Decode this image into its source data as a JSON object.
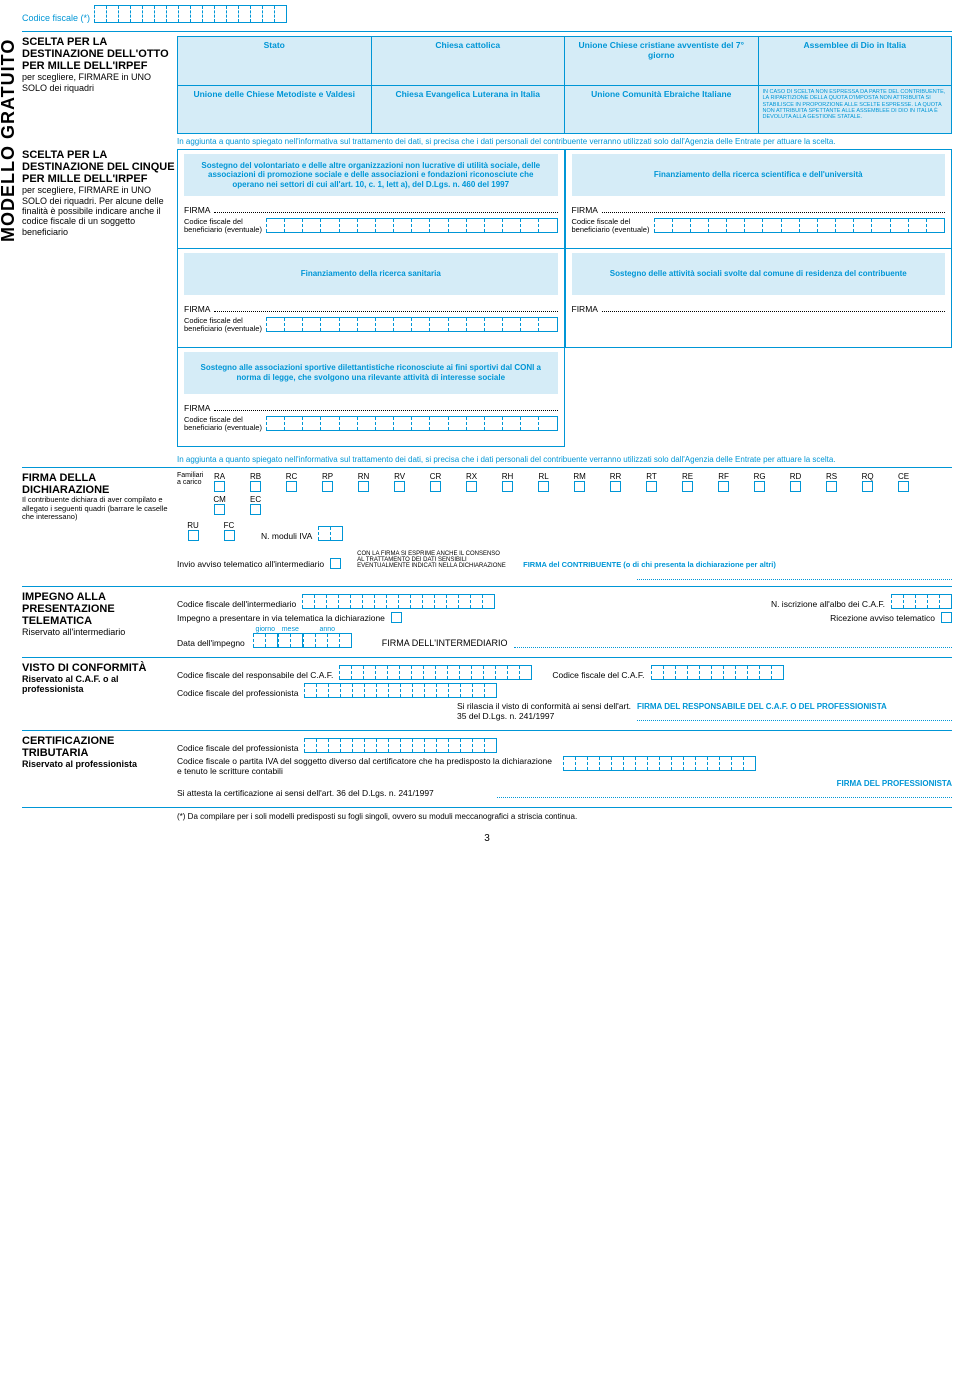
{
  "codice_fiscale_label": "Codice fiscale (*)",
  "vertical_sidebar": "MODELLO GRATUITO",
  "otto_mille": {
    "title": "SCELTA PER LA DESTINAZIONE DELL'OTTO PER MILLE DELL'IRPEF",
    "subtitle": "per scegliere, FIRMARE in UNO SOLO dei riquadri",
    "row1": [
      "Stato",
      "Chiesa cattolica",
      "Unione Chiese cristiane avventiste del 7° giorno",
      "Assemblee di Dio in Italia"
    ],
    "row2": [
      "Unione delle Chiese Metodiste e Valdesi",
      "Chiesa Evangelica Luterana in Italia",
      "Unione Comunità Ebraiche Italiane"
    ],
    "legal": "IN CASO DI SCELTA NON ESPRESSA DA PARTE DEL CONTRIBUENTE, LA RIPARTIZIONE DELLA QUOTA D'IMPOSTA NON ATTRIBUITA SI STABILISCE IN PROPORZIONE ALLE SCELTE ESPRESSE. LA QUOTA NON ATTRIBUITA SPETTANTE ALLE ASSEMBLEE DI DIO IN ITALIA È DEVOLUTA ALLA GESTIONE STATALE."
  },
  "privacy_note": "In aggiunta a quanto spiegato nell'informativa sul trattamento dei dati, si precisa che i dati personali del contribuente verranno utilizzati solo dall'Agenzia delle Entrate per attuare la scelta.",
  "cinque_mille": {
    "title": "SCELTA PER LA DESTINAZIONE DEL CINQUE PER MILLE DELL'IRPEF",
    "subtitle": "per scegliere, FIRMARE in UNO SOLO dei riquadri. Per alcune delle finalità è possibile indicare anche il codice fiscale di un soggetto beneficiario",
    "boxes": [
      "Sostegno del volontariato e delle altre organizzazioni non lucrative di utilità sociale, delle associazioni di promozione sociale e delle associazioni e fondazioni riconosciute che operano nei settori di cui all'art. 10, c. 1, lett a), del D.Lgs. n. 460 del 1997",
      "Finanziamento della ricerca scientifica e dell'università",
      "Finanziamento della ricerca sanitaria",
      "Sostegno delle attività sociali svolte dal comune di residenza del contribuente",
      "Sostegno alle associazioni sportive dilettantistiche riconosciute ai fini sportivi dal CONI a norma di legge, che svolgono una rilevante attività di interesse sociale"
    ],
    "firma_label": "FIRMA",
    "cf_benef_label": "Codice fiscale del\nbeneficiario (eventuale)"
  },
  "firma_dich": {
    "title": "FIRMA DELLA DICHIARAZIONE",
    "sub": "Il contribuente dichiara di aver compilato e allegato i seguenti quadri (barrare le caselle che interessano)",
    "familiari": "Familiari a carico",
    "codes": [
      "RA",
      "RB",
      "RC",
      "RP",
      "RN",
      "RV",
      "CR",
      "RX",
      "RH",
      "RL",
      "RM",
      "RR",
      "RT",
      "RE",
      "RF",
      "RG",
      "RD",
      "RS",
      "RQ",
      "CE",
      "CM",
      "EC"
    ],
    "codes2": [
      "RU",
      "FC"
    ],
    "moduli_iva": "N. moduli IVA",
    "invio": "Invio avviso telematico all'intermediario",
    "consenso": "CON LA FIRMA SI ESPRIME ANCHE IL CONSENSO AL TRATTAMENTO DEI DATI SENSIBILI EVENTUALMENTE INDICATI NELLA DICHIARAZIONE",
    "firma_contrib": "FIRMA del CONTRIBUENTE (o di chi presenta la dichiarazione per altri)"
  },
  "impegno": {
    "title": "IMPEGNO ALLA PRESENTAZIONE TELEMATICA",
    "sub": "Riservato all'intermediario",
    "cf_interm": "Codice fiscale dell'intermediario",
    "albo": "N. iscrizione all'albo dei C.A.F.",
    "impegno_pres": "Impegno a presentare in via telematica la dichiarazione",
    "ricezione": "Ricezione avviso telematico",
    "data": "Data dell'impegno",
    "giorno": "giorno",
    "mese": "mese",
    "anno": "anno",
    "firma_interm": "FIRMA DELL'INTERMEDIARIO"
  },
  "visto": {
    "title": "VISTO DI CONFORMITÀ",
    "sub": "Riservato al C.A.F. o al professionista",
    "cf_resp": "Codice fiscale del responsabile del C.A.F.",
    "cf_caf": "Codice fiscale del C.A.F.",
    "cf_prof": "Codice fiscale del professionista",
    "rilascia": "Si rilascia il visto di conformità ai sensi dell'art. 35 del D.Lgs. n. 241/1997",
    "firma": "FIRMA DEL RESPONSABILE DEL C.A.F. O DEL PROFESSIONISTA"
  },
  "cert": {
    "title": "CERTIFICAZIONE TRIBUTARIA",
    "sub": "Riservato al professionista",
    "cf_prof": "Codice fiscale del professionista",
    "cf_sogg": "Codice fiscale o partita IVA del soggetto diverso dal certificatore che ha predisposto la dichiarazione e tenuto le scritture contabili",
    "attesta": "Si attesta la certificazione ai sensi dell'art. 36 del D.Lgs. n. 241/1997",
    "firma": "FIRMA DEL PROFESSIONISTA"
  },
  "footer": "(*) Da compilare per i soli modelli predisposti su fogli singoli, ovvero su moduli meccanografici a striscia continua.",
  "page_number": "3"
}
